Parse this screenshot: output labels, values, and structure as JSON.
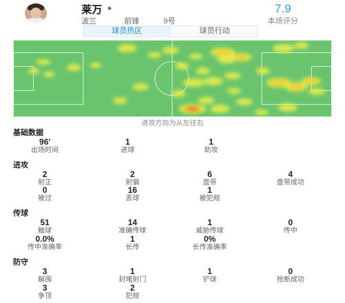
{
  "player": {
    "name": "莱万",
    "country": "波兰",
    "position": "前锋",
    "number": "9号",
    "rating": "7.9",
    "rating_label": "本场评分"
  },
  "tabs": [
    {
      "label": "球员热区",
      "active": true
    },
    {
      "label": "球员行动",
      "active": false
    }
  ],
  "heatmap": {
    "caption": "进攻方向为从左往右"
  },
  "sections": {
    "basic": {
      "title": "基础数据",
      "stats": [
        {
          "value": "96'",
          "label": "出场时间"
        },
        {
          "value": "1",
          "label": "进球"
        },
        {
          "value": "1",
          "label": "助攻"
        }
      ]
    },
    "attack": {
      "title": "进攻",
      "stats": [
        {
          "value": "2",
          "label": "射正"
        },
        {
          "value": "2",
          "label": "射偏"
        },
        {
          "value": "6",
          "label": "盘带"
        },
        {
          "value": "4",
          "label": "盘带成功"
        },
        {
          "value": "0",
          "label": "被过"
        },
        {
          "value": "16",
          "label": "丢球"
        },
        {
          "value": "1",
          "label": "被犯规"
        }
      ]
    },
    "passing": {
      "title": "传球",
      "stats": [
        {
          "value": "51",
          "label": "触球"
        },
        {
          "value": "14",
          "label": "准确传球"
        },
        {
          "value": "1",
          "label": "威胁传球"
        },
        {
          "value": "0",
          "label": "传中"
        },
        {
          "value": "0.0%",
          "label": "传中准确率"
        },
        {
          "value": "1",
          "label": "长传"
        },
        {
          "value": "0%",
          "label": "长传准确率"
        }
      ]
    },
    "defense": {
      "title": "防守",
      "stats": [
        {
          "value": "3",
          "label": "解围"
        },
        {
          "value": "1",
          "label": "封堵射门"
        },
        {
          "value": "1",
          "label": "铲球"
        },
        {
          "value": "0",
          "label": "抢断成功"
        },
        {
          "value": "3",
          "label": "争顶"
        },
        {
          "value": "2",
          "label": "犯规"
        }
      ]
    }
  },
  "colors": {
    "accent": "#2aa3d6",
    "pitch": "#6ac46d"
  }
}
